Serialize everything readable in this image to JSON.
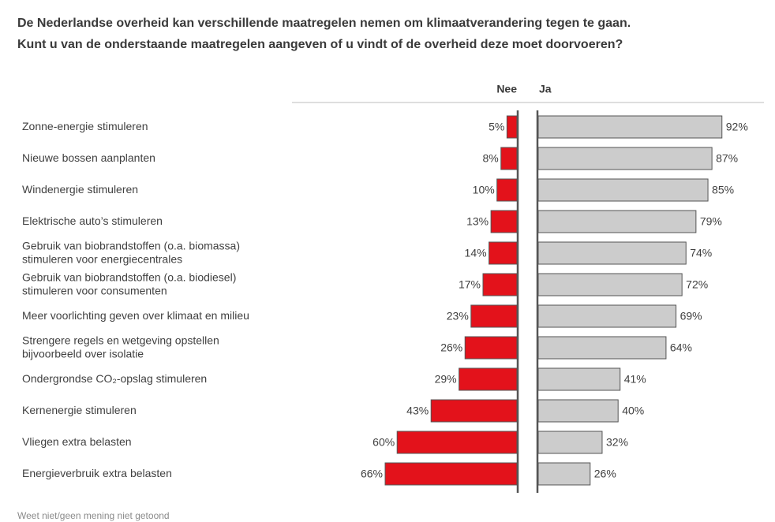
{
  "chart_data": {
    "type": "diverging_bar",
    "title": [
      "De Nederlandse overheid kan verschillende maatregelen nemen om klimaatverandering tegen te gaan.",
      "Kunt u van de onderstaande maatregelen aangeven of u vindt of de overheid deze moet doorvoeren?"
    ],
    "categories": [
      "Zonne-energie stimuleren",
      "Nieuwe bossen aanplanten",
      "Windenergie stimuleren",
      "Elektrische auto’s stimuleren",
      "Gebruik van biobrandstoffen (o.a. biomassa)\nstimuleren voor energiecentrales",
      "Gebruik van biobrandstoffen (o.a. biodiesel)\nstimuleren voor consumenten",
      "Meer voorlichting geven over klimaat en milieu",
      "Strengere regels en wetgeving opstellen\nbijvoorbeeld over isolatie",
      "Ondergrondse CO₂-opslag stimuleren",
      "Kernenergie stimuleren",
      "Vliegen extra belasten",
      "Energieverbruik extra belasten"
    ],
    "series": [
      {
        "name": "Nee",
        "color": "#e3121b",
        "values": [
          5,
          8,
          10,
          13,
          14,
          17,
          23,
          26,
          29,
          43,
          60,
          66
        ],
        "value_labels": [
          "5%",
          "8%",
          "10%",
          "13%",
          "14%",
          "17%",
          "23%",
          "26%",
          "29%",
          "43%",
          "60%",
          "66%"
        ]
      },
      {
        "name": "Ja",
        "color": "#cccccc",
        "values": [
          92,
          87,
          85,
          79,
          74,
          72,
          69,
          64,
          41,
          40,
          32,
          26
        ],
        "value_labels": [
          "92%",
          "87%",
          "85%",
          "79%",
          "74%",
          "72%",
          "69%",
          "64%",
          "41%",
          "40%",
          "32%",
          "26%"
        ]
      }
    ],
    "xlim": [
      0,
      100
    ],
    "note": "Weet niet/geen mening niet getoond"
  }
}
